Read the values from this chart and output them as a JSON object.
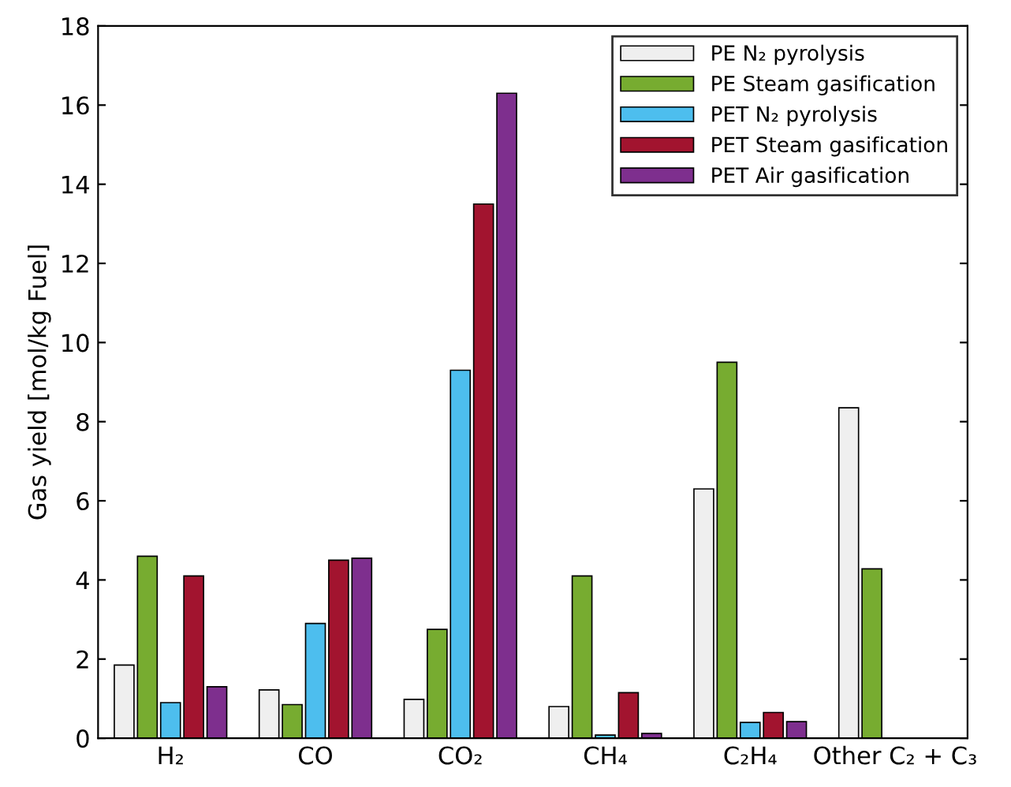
{
  "chart_data": {
    "type": "bar",
    "ylabel": "Gas yield [mol/kg Fuel]",
    "categories": [
      "H₂",
      "CO",
      "CO₂",
      "CH₄",
      "C₂H₄",
      "Other C₂ + C₃"
    ],
    "series": [
      {
        "name": "PE N₂ pyrolysis",
        "color": "#efefef",
        "values": [
          1.85,
          1.22,
          0.98,
          0.8,
          6.3,
          8.35
        ]
      },
      {
        "name": "PE Steam gasification",
        "color": "#77ac30",
        "values": [
          4.6,
          0.85,
          2.75,
          4.1,
          9.5,
          4.28
        ]
      },
      {
        "name": "PET N₂ pyrolysis",
        "color": "#4dbeee",
        "values": [
          0.9,
          2.9,
          9.3,
          0.08,
          0.4,
          null
        ]
      },
      {
        "name": "PET Steam gasification",
        "color": "#a2142f",
        "values": [
          4.1,
          4.5,
          13.5,
          1.15,
          0.65,
          null
        ]
      },
      {
        "name": "PET Air gasification",
        "color": "#7e2f8e",
        "values": [
          1.3,
          4.55,
          16.3,
          0.12,
          0.42,
          null
        ]
      }
    ],
    "ylim": [
      0,
      18
    ],
    "yticks": [
      0,
      2,
      4,
      6,
      8,
      10,
      12,
      14,
      16,
      18
    ],
    "grid": false,
    "legend": "top right"
  }
}
